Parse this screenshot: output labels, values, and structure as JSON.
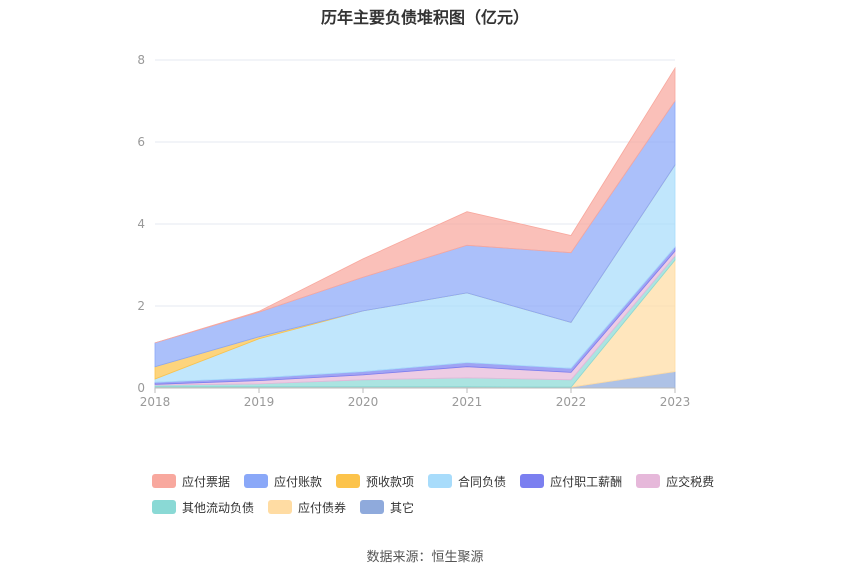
{
  "chart_data": {
    "type": "area",
    "stacked": true,
    "title": "历年主要负债堆积图（亿元）",
    "xlabel": "",
    "ylabel": "",
    "categories": [
      "2018",
      "2019",
      "2020",
      "2021",
      "2022",
      "2023"
    ],
    "ylim": [
      0,
      8
    ],
    "yticks": [
      0,
      2,
      4,
      6,
      8
    ],
    "grid": true,
    "legend_position": "bottom",
    "series": [
      {
        "name": "其它",
        "color": "#8faadc",
        "values": [
          0.03,
          0.03,
          0.03,
          0.03,
          0.02,
          0.4
        ]
      },
      {
        "name": "应付债券",
        "color": "#ffdca3",
        "values": [
          0,
          0,
          0,
          0,
          0,
          2.72
        ]
      },
      {
        "name": "其他流动负债",
        "color": "#8ad9d5",
        "values": [
          0.04,
          0.07,
          0.17,
          0.22,
          0.18,
          0.1
        ]
      },
      {
        "name": "应交税费",
        "color": "#e6b8da",
        "values": [
          0.02,
          0.08,
          0.12,
          0.27,
          0.18,
          0.12
        ]
      },
      {
        "name": "应付职工薪酬",
        "color": "#7b7ff0",
        "values": [
          0.05,
          0.07,
          0.08,
          0.1,
          0.1,
          0.1
        ]
      },
      {
        "name": "合同负债",
        "color": "#a8dcfb",
        "values": [
          0.08,
          0.95,
          1.48,
          1.7,
          1.12,
          2.0
        ]
      },
      {
        "name": "预收款项",
        "color": "#fcc34b",
        "values": [
          0.3,
          0.05,
          0,
          0,
          0,
          0
        ]
      },
      {
        "name": "应付账款",
        "color": "#8aa8f8",
        "values": [
          0.58,
          0.6,
          0.82,
          1.16,
          1.7,
          1.56
        ]
      },
      {
        "name": "应付票据",
        "color": "#f8a89e",
        "values": [
          0,
          0.02,
          0.45,
          0.82,
          0.42,
          0.8
        ]
      }
    ]
  },
  "legend": [
    {
      "label": "应付票据",
      "color": "#f8a89e"
    },
    {
      "label": "应付账款",
      "color": "#8aa8f8"
    },
    {
      "label": "预收款项",
      "color": "#fcc34b"
    },
    {
      "label": "合同负债",
      "color": "#a8dcfb"
    },
    {
      "label": "应付职工薪酬",
      "color": "#7b7ff0"
    },
    {
      "label": "应交税费",
      "color": "#e6b8da"
    },
    {
      "label": "其他流动负债",
      "color": "#8ad9d5"
    },
    {
      "label": "应付债券",
      "color": "#ffdca3"
    },
    {
      "label": "其它",
      "color": "#8faadc"
    }
  ],
  "source": "数据来源：恒生聚源"
}
